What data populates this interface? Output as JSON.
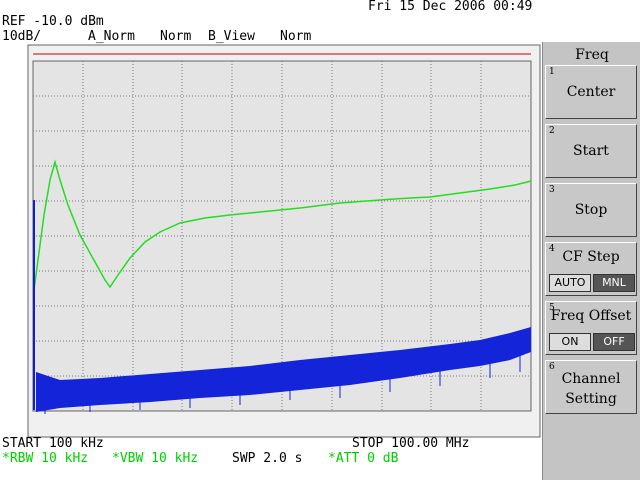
{
  "header": {
    "datetime": "Fri 15 Dec 2006 00:49",
    "ref": "REF -10.0 dBm",
    "scale": "10dB/",
    "trace_a": "A_Norm",
    "mode_a": "Norm",
    "trace_b": "B_View",
    "mode_b": "Norm"
  },
  "footer": {
    "start": "START 100 kHz",
    "stop": "STOP 100.00 MHz",
    "rbw": "*RBW 10 kHz",
    "vbw": "*VBW 10 kHz",
    "swp": "SWP 2.0 s",
    "att": "*ATT 0 dB"
  },
  "softkeys": {
    "title": "Freq",
    "keys": [
      {
        "number": 1,
        "label": "Center"
      },
      {
        "number": 2,
        "label": "Start"
      },
      {
        "number": 3,
        "label": "Stop"
      },
      {
        "number": 4,
        "label": "CF Step",
        "options": [
          "AUTO",
          "MNL"
        ]
      },
      {
        "number": 5,
        "label": "Freq Offset",
        "options": [
          "ON",
          "OFF"
        ]
      },
      {
        "number": 6,
        "label": "Channel Setting"
      }
    ]
  }
}
